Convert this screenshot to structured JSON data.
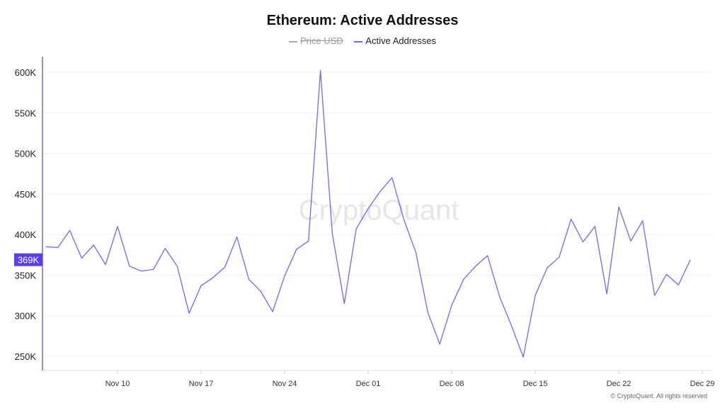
{
  "chart_data": {
    "type": "line",
    "title": "Ethereum: Active Addresses",
    "legend": [
      {
        "name": "Price USD",
        "color": "#aaaaaa",
        "hidden": true
      },
      {
        "name": "Active Addresses",
        "color": "#7b61ff",
        "hidden": false
      }
    ],
    "legend_position": "top",
    "x_start": "Nov 04",
    "x_end": "Dec 28",
    "x_ticks": [
      "Nov 10",
      "Nov 17",
      "Nov 24",
      "Dec 01",
      "Dec 08",
      "Dec 15",
      "Dec 22",
      "Dec 29"
    ],
    "y_ticks": [
      "250K",
      "300K",
      "350K",
      "400K",
      "450K",
      "500K",
      "550K",
      "600K"
    ],
    "ylim": [
      250,
      600
    ],
    "y_unit": "K",
    "grid": true,
    "last_value_label": "369K",
    "series": [
      {
        "name": "Active Addresses",
        "color": "#7b61ff",
        "values": [
          385,
          384,
          405,
          371,
          387,
          363,
          410,
          361,
          355,
          357,
          383,
          361,
          303,
          337,
          347,
          360,
          397,
          345,
          330,
          305,
          349,
          382,
          392,
          602,
          401,
          315,
          407,
          432,
          453,
          470,
          418,
          378,
          304,
          265,
          313,
          345,
          361,
          374,
          324,
          288,
          249,
          325,
          359,
          372,
          419,
          391,
          410,
          327,
          434,
          392,
          417,
          325,
          351,
          338,
          369
        ]
      }
    ],
    "watermark": "CryptoQuant"
  },
  "credit": "© CryptoQuant. All rights reserved"
}
